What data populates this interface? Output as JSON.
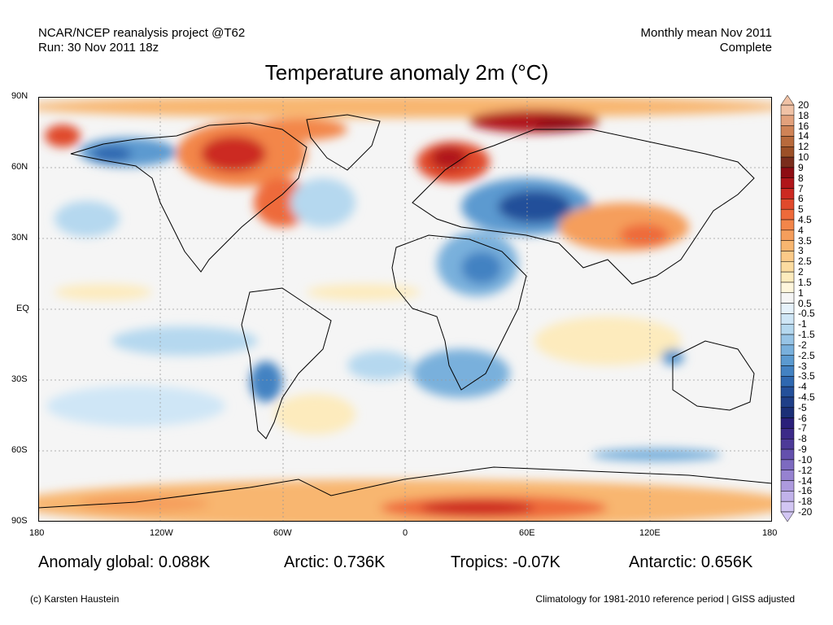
{
  "header": {
    "source_line1": "NCAR/NCEP reanalysis project @T62",
    "source_line2": "Run: 30 Nov 2011 18z",
    "period_line1": "Monthly mean Nov 2011",
    "period_line2": "Complete"
  },
  "title": "Temperature anomaly 2m (°C)",
  "map": {
    "projection": "equirectangular",
    "lat_labels": [
      "90N",
      "60N",
      "30N",
      "EQ",
      "30S",
      "60S",
      "90S"
    ],
    "lon_labels": [
      "180",
      "120W",
      "60W",
      "0",
      "60E",
      "120E",
      "180"
    ]
  },
  "colorbar": {
    "levels": [
      "20",
      "18",
      "16",
      "14",
      "12",
      "10",
      "9",
      "8",
      "7",
      "6",
      "5",
      "4.5",
      "4",
      "3.5",
      "3",
      "2.5",
      "2",
      "1.5",
      "1",
      "0.5",
      "-0.5",
      "-1",
      "-1.5",
      "-2",
      "-2.5",
      "-3",
      "-3.5",
      "-4",
      "-4.5",
      "-5",
      "-6",
      "-7",
      "-8",
      "-9",
      "-10",
      "-12",
      "-14",
      "-16",
      "-18",
      "-20"
    ],
    "colors": [
      "#f0c2a6",
      "#e2a17c",
      "#cf8356",
      "#b86a3c",
      "#9c5027",
      "#7a2d1c",
      "#8e0d13",
      "#b0161a",
      "#cc2a22",
      "#e04a2c",
      "#ee6a3a",
      "#f3864a",
      "#f59e5c",
      "#f8b670",
      "#fbca88",
      "#fcdca0",
      "#fdebbd",
      "#fef6dc",
      "#f5f5f5",
      "#e6f2fb",
      "#cfe6f6",
      "#b5d8ef",
      "#97c4e6",
      "#79b0dc",
      "#5b9ad0",
      "#4382c2",
      "#2f68b0",
      "#24509a",
      "#1f3f88",
      "#1b2f77",
      "#2a1f7a",
      "#3c2a88",
      "#4d3a98",
      "#6450ad",
      "#7d6ac0",
      "#9682d0",
      "#ad9ade",
      "#c1b2ea",
      "#d2c6f3"
    ]
  },
  "stats": {
    "global": "Anomaly global: 0.088K",
    "arctic": "Arctic: 0.736K",
    "tropics": "Tropics: -0.07K",
    "antarctic": "Antarctic: 0.656K"
  },
  "footer": {
    "credit": "(c) Karsten Haustein",
    "note": "Climatology for 1981-2010 reference period | GISS adjusted"
  }
}
